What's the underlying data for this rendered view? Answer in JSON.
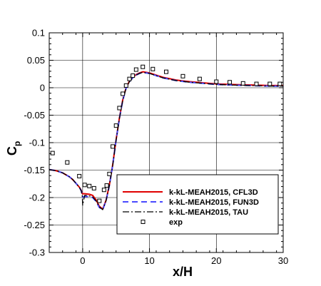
{
  "chart_data": {
    "type": "line",
    "xlabel": "x/H",
    "ylabel_main": "C",
    "ylabel_sub": "p",
    "xlim": [
      -5,
      30
    ],
    "ylim": [
      -0.3,
      0.1
    ],
    "xticks": [
      0,
      10,
      20,
      30
    ],
    "yticks": [
      -0.3,
      -0.25,
      -0.2,
      -0.15,
      -0.1,
      -0.05,
      0,
      0.05,
      0.1
    ],
    "grid": true,
    "legend_position": "lower-right",
    "series": [
      {
        "name": "k-kL-MEAH2015, CFL3D",
        "color": "#e00000",
        "style": "solid",
        "x": [
          -5,
          -4,
          -3,
          -2,
          -1.5,
          -1,
          -0.5,
          -0.2,
          -0.05,
          0,
          0.3,
          1,
          1.5,
          2,
          2.5,
          3,
          3.5,
          4,
          4.5,
          5,
          5.5,
          6,
          6.5,
          7,
          7.5,
          8,
          8.5,
          9,
          10,
          11,
          12,
          14,
          16,
          18,
          20,
          22,
          25,
          28,
          30
        ],
        "y": [
          -0.149,
          -0.151,
          -0.155,
          -0.162,
          -0.167,
          -0.174,
          -0.181,
          -0.187,
          -0.193,
          -0.193,
          -0.193,
          -0.194,
          -0.196,
          -0.204,
          -0.216,
          -0.221,
          -0.205,
          -0.177,
          -0.14,
          -0.095,
          -0.055,
          -0.022,
          0.0,
          0.012,
          0.019,
          0.024,
          0.027,
          0.029,
          0.027,
          0.023,
          0.019,
          0.014,
          0.011,
          0.009,
          0.007,
          0.006,
          0.005,
          0.004,
          0.004
        ]
      },
      {
        "name": "k-kL-MEAH2015, FUN3D",
        "color": "#4a4aff",
        "style": "dashed",
        "x": [
          -5,
          -4,
          -3,
          -2,
          -1.5,
          -1,
          -0.5,
          -0.2,
          -0.05,
          0,
          0.3,
          1,
          1.5,
          2,
          2.5,
          3,
          3.5,
          4,
          4.5,
          5,
          5.5,
          6,
          6.5,
          7,
          7.5,
          8,
          8.5,
          9,
          10,
          11,
          12,
          14,
          16,
          18,
          20,
          22,
          25,
          28,
          30
        ],
        "y": [
          -0.149,
          -0.151,
          -0.155,
          -0.162,
          -0.167,
          -0.174,
          -0.181,
          -0.188,
          -0.196,
          -0.199,
          -0.198,
          -0.198,
          -0.2,
          -0.207,
          -0.218,
          -0.222,
          -0.206,
          -0.178,
          -0.141,
          -0.096,
          -0.056,
          -0.023,
          -0.001,
          0.011,
          0.018,
          0.023,
          0.026,
          0.028,
          0.026,
          0.022,
          0.018,
          0.013,
          0.01,
          0.008,
          0.006,
          0.005,
          0.004,
          0.003,
          0.003
        ]
      },
      {
        "name": "k-kL-MEAH2015, TAU",
        "color": "#000000",
        "style": "dashdot",
        "x": [
          -5,
          -4,
          -3,
          -2,
          -1.5,
          -1,
          -0.5,
          -0.2,
          -0.05,
          0,
          0.3,
          1,
          1.5,
          2,
          2.5,
          3,
          3.5,
          4,
          4.5,
          5,
          5.5,
          6,
          6.5,
          7,
          7.5,
          8,
          8.5,
          9,
          10,
          11,
          12,
          14,
          16,
          18,
          20,
          22,
          25,
          28,
          30
        ],
        "y": [
          -0.149,
          -0.151,
          -0.155,
          -0.162,
          -0.167,
          -0.174,
          -0.181,
          -0.188,
          -0.198,
          -0.214,
          -0.196,
          -0.197,
          -0.199,
          -0.206,
          -0.217,
          -0.222,
          -0.206,
          -0.178,
          -0.141,
          -0.096,
          -0.056,
          -0.023,
          -0.001,
          0.011,
          0.018,
          0.023,
          0.026,
          0.028,
          0.026,
          0.022,
          0.018,
          0.013,
          0.01,
          0.008,
          0.006,
          0.005,
          0.004,
          0.003,
          0.003
        ]
      },
      {
        "name": "exp",
        "color": "#000000",
        "style": "markers",
        "x": [
          -4.5,
          -2.3,
          -0.5,
          0.3,
          1.0,
          1.7,
          2.5,
          3.2,
          3.6,
          4.0,
          4.5,
          5.0,
          5.5,
          6.0,
          6.5,
          7.0,
          7.5,
          8.0,
          9.0,
          10.5,
          12.5,
          15.0,
          17.5,
          20.0,
          22.0,
          24.0,
          26.0,
          28.0,
          29.5
        ],
        "y": [
          -0.119,
          -0.136,
          -0.161,
          -0.177,
          -0.179,
          -0.183,
          -0.206,
          -0.186,
          -0.178,
          -0.157,
          -0.107,
          -0.069,
          -0.037,
          -0.011,
          0.004,
          0.016,
          0.022,
          0.033,
          0.038,
          0.034,
          0.029,
          0.021,
          0.016,
          0.011,
          0.01,
          0.008,
          0.007,
          0.007,
          0.007
        ]
      }
    ]
  }
}
